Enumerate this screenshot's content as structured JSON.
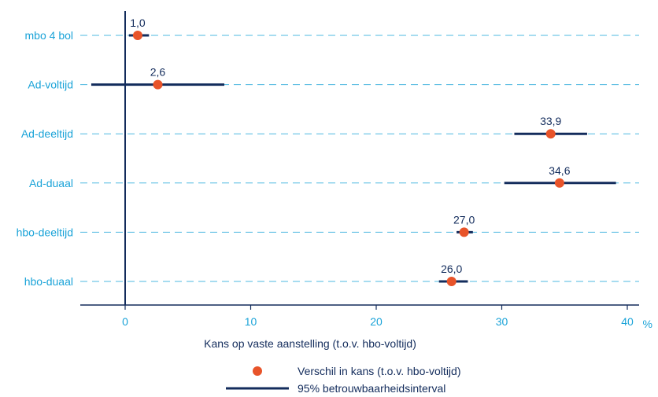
{
  "chart_data": {
    "type": "scatter",
    "categories": [
      "mbo 4 bol",
      "Ad-voltijd",
      "Ad-deeltijd",
      "Ad-duaal",
      "hbo-deeltijd",
      "hbo-duaal"
    ],
    "series": [
      {
        "name": "Verschil in kans (t.o.v. hbo-voltijd)",
        "values": [
          1.0,
          2.6,
          33.9,
          34.6,
          27.0,
          26.0
        ],
        "labels": [
          "1,0",
          "2,6",
          "33,9",
          "34,6",
          "27,0",
          "26,0"
        ]
      },
      {
        "name": "95% betrouwbaarheidsinterval",
        "intervals": [
          [
            0.3,
            1.9
          ],
          [
            -2.7,
            7.9
          ],
          [
            31.0,
            36.8
          ],
          [
            30.2,
            39.1
          ],
          [
            26.4,
            27.7
          ],
          [
            25.0,
            27.3
          ]
        ]
      }
    ],
    "xlabel": "Kans op vaste aanstelling (t.o.v. hbo-voltijd)",
    "x_unit": "%",
    "xlim": [
      -3.6,
      41
    ],
    "xticks": [
      0,
      10,
      20,
      30,
      40
    ],
    "xtick_labels": [
      "0",
      "10",
      "20",
      "30",
      "40"
    ],
    "grid": "dashed horizontal guide lines per category",
    "legend_position": "bottom-center",
    "colors": {
      "point": "#e8542a",
      "interval": "#132c5c",
      "labels": "#1aa3d8",
      "guide": "#4db8e0",
      "axis": "#132c5c"
    }
  }
}
